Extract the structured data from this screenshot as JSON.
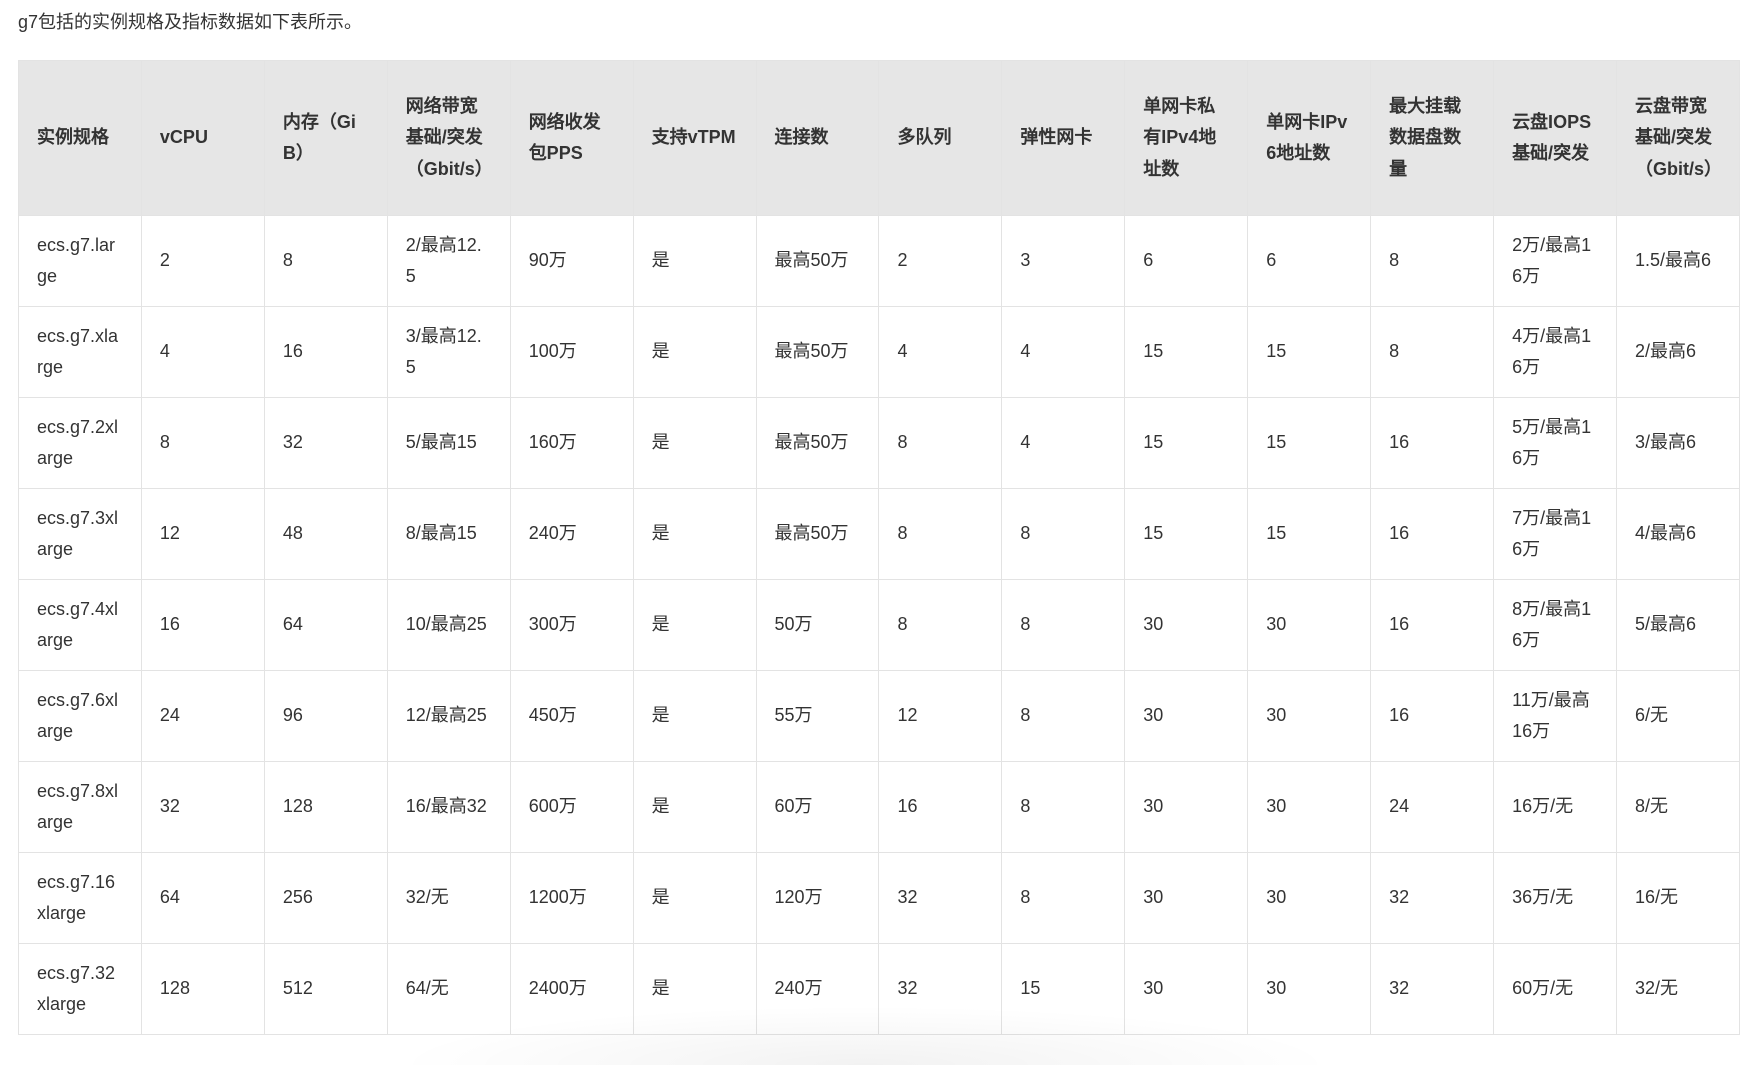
{
  "intro": "g7包括的实例规格及指标数据如下表所示。",
  "table": {
    "headers": [
      "实例规格",
      "vCPU",
      "内存（GiB）",
      "网络带宽基础/突发（Gbit/s）",
      "网络收发包PPS",
      "支持vTPM",
      "连接数",
      "多队列",
      "弹性网卡",
      "单网卡私有IPv4地址数",
      "单网卡IPv6地址数",
      "最大挂载数据盘数量",
      "云盘IOPS基础/突发",
      "云盘带宽基础/突发（Gbit/s）"
    ],
    "rows": [
      [
        "ecs.g7.large",
        "2",
        "8",
        "2/最高12.5",
        "90万",
        "是",
        "最高50万",
        "2",
        "3",
        "6",
        "6",
        "8",
        "2万/最高16万",
        "1.5/最高6"
      ],
      [
        "ecs.g7.xlarge",
        "4",
        "16",
        "3/最高12.5",
        "100万",
        "是",
        "最高50万",
        "4",
        "4",
        "15",
        "15",
        "8",
        "4万/最高16万",
        "2/最高6"
      ],
      [
        "ecs.g7.2xlarge",
        "8",
        "32",
        "5/最高15",
        "160万",
        "是",
        "最高50万",
        "8",
        "4",
        "15",
        "15",
        "16",
        "5万/最高16万",
        "3/最高6"
      ],
      [
        "ecs.g7.3xlarge",
        "12",
        "48",
        "8/最高15",
        "240万",
        "是",
        "最高50万",
        "8",
        "8",
        "15",
        "15",
        "16",
        "7万/最高16万",
        "4/最高6"
      ],
      [
        "ecs.g7.4xlarge",
        "16",
        "64",
        "10/最高25",
        "300万",
        "是",
        "50万",
        "8",
        "8",
        "30",
        "30",
        "16",
        "8万/最高16万",
        "5/最高6"
      ],
      [
        "ecs.g7.6xlarge",
        "24",
        "96",
        "12/最高25",
        "450万",
        "是",
        "55万",
        "12",
        "8",
        "30",
        "30",
        "16",
        "11万/最高16万",
        "6/无"
      ],
      [
        "ecs.g7.8xlarge",
        "32",
        "128",
        "16/最高32",
        "600万",
        "是",
        "60万",
        "16",
        "8",
        "30",
        "30",
        "24",
        "16万/无",
        "8/无"
      ],
      [
        "ecs.g7.16xlarge",
        "64",
        "256",
        "32/无",
        "1200万",
        "是",
        "120万",
        "32",
        "8",
        "30",
        "30",
        "32",
        "36万/无",
        "16/无"
      ],
      [
        "ecs.g7.32xlarge",
        "128",
        "512",
        "64/无",
        "2400万",
        "是",
        "240万",
        "32",
        "15",
        "30",
        "30",
        "32",
        "60万/无",
        "32/无"
      ]
    ]
  }
}
